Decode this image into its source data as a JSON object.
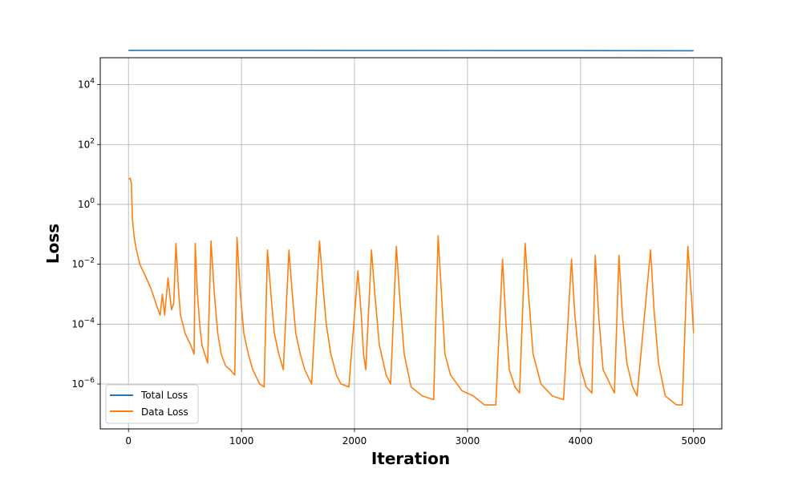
{
  "chart_data": {
    "type": "line",
    "xlabel": "Iteration",
    "ylabel": "Loss",
    "yscale": "log",
    "xlim": [
      -250,
      5250
    ],
    "ylim_log10": [
      -7.5,
      4.9
    ],
    "grid": true,
    "legend_position": "bottom-left",
    "x_ticks": [
      0,
      1000,
      2000,
      3000,
      4000,
      5000
    ],
    "x_tick_labels": [
      "0",
      "1000",
      "2000",
      "3000",
      "4000",
      "5000"
    ],
    "y_ticks_log10": [
      -6,
      -4,
      -2,
      0,
      2,
      4
    ],
    "y_tick_labels": [
      {
        "base": "10",
        "exp": "−6"
      },
      {
        "base": "10",
        "exp": "−4"
      },
      {
        "base": "10",
        "exp": "−2"
      },
      {
        "base": "10",
        "exp": "0"
      },
      {
        "base": "10",
        "exp": "2"
      },
      {
        "base": "10",
        "exp": "4"
      }
    ],
    "series": [
      {
        "name": "Total Loss",
        "color": "#1f77b4",
        "points": [
          [
            0,
            140000
          ],
          [
            1000,
            140000
          ],
          [
            2000,
            139000
          ],
          [
            3000,
            138500
          ],
          [
            4000,
            137500
          ],
          [
            5000,
            136000
          ]
        ]
      },
      {
        "name": "Data Loss",
        "color": "#ff7f0e",
        "points": [
          [
            0,
            7
          ],
          [
            15,
            7.5
          ],
          [
            25,
            5
          ],
          [
            30,
            1.2
          ],
          [
            35,
            0.3
          ],
          [
            40,
            0.2
          ],
          [
            50,
            0.08
          ],
          [
            70,
            0.03
          ],
          [
            100,
            0.01
          ],
          [
            150,
            0.004
          ],
          [
            200,
            0.0015
          ],
          [
            250,
            0.0004
          ],
          [
            280,
            0.0002
          ],
          [
            300,
            0.001
          ],
          [
            320,
            0.0002
          ],
          [
            350,
            0.0035
          ],
          [
            380,
            0.0003
          ],
          [
            400,
            0.0005
          ],
          [
            420,
            0.05
          ],
          [
            440,
            0.002
          ],
          [
            460,
            0.0002
          ],
          [
            480,
            0.0001
          ],
          [
            500,
            5e-05
          ],
          [
            550,
            2e-05
          ],
          [
            580,
            1e-05
          ],
          [
            590,
            0.05
          ],
          [
            610,
            0.001
          ],
          [
            630,
            0.0001
          ],
          [
            650,
            2e-05
          ],
          [
            700,
            5e-06
          ],
          [
            730,
            0.06
          ],
          [
            760,
            0.001
          ],
          [
            790,
            5e-05
          ],
          [
            820,
            1e-05
          ],
          [
            860,
            4e-06
          ],
          [
            900,
            3e-06
          ],
          [
            940,
            2e-06
          ],
          [
            960,
            0.08
          ],
          [
            990,
            0.001
          ],
          [
            1020,
            5e-05
          ],
          [
            1060,
            1e-05
          ],
          [
            1100,
            3e-06
          ],
          [
            1160,
            1e-06
          ],
          [
            1200,
            8e-07
          ],
          [
            1230,
            0.03
          ],
          [
            1260,
            0.001
          ],
          [
            1290,
            5e-05
          ],
          [
            1330,
            1e-05
          ],
          [
            1370,
            3e-06
          ],
          [
            1420,
            0.03
          ],
          [
            1450,
            0.001
          ],
          [
            1480,
            5e-05
          ],
          [
            1520,
            1e-05
          ],
          [
            1560,
            3e-06
          ],
          [
            1620,
            1e-06
          ],
          [
            1690,
            0.06
          ],
          [
            1720,
            0.002
          ],
          [
            1750,
            0.0001
          ],
          [
            1790,
            1e-05
          ],
          [
            1840,
            2e-06
          ],
          [
            1880,
            1e-06
          ],
          [
            1950,
            8e-07
          ],
          [
            2030,
            0.006
          ],
          [
            2060,
            0.0002
          ],
          [
            2080,
            1e-05
          ],
          [
            2100,
            3e-06
          ],
          [
            2150,
            0.03
          ],
          [
            2180,
            0.001
          ],
          [
            2220,
            2e-05
          ],
          [
            2280,
            2e-06
          ],
          [
            2320,
            1e-06
          ],
          [
            2370,
            0.04
          ],
          [
            2400,
            0.0008
          ],
          [
            2440,
            1e-05
          ],
          [
            2500,
            8e-07
          ],
          [
            2600,
            4e-07
          ],
          [
            2700,
            3e-07
          ],
          [
            2740,
            0.09
          ],
          [
            2770,
            0.001
          ],
          [
            2800,
            1e-05
          ],
          [
            2850,
            2e-06
          ],
          [
            2950,
            6e-07
          ],
          [
            3050,
            4e-07
          ],
          [
            3150,
            2e-07
          ],
          [
            3250,
            2e-07
          ],
          [
            3310,
            0.015
          ],
          [
            3340,
            0.0001
          ],
          [
            3370,
            3e-06
          ],
          [
            3420,
            8e-07
          ],
          [
            3460,
            5e-07
          ],
          [
            3510,
            0.05
          ],
          [
            3540,
            0.001
          ],
          [
            3580,
            1e-05
          ],
          [
            3650,
            1e-06
          ],
          [
            3750,
            4e-07
          ],
          [
            3850,
            3e-07
          ],
          [
            3920,
            0.015
          ],
          [
            3950,
            0.0002
          ],
          [
            3990,
            5e-06
          ],
          [
            4050,
            8e-07
          ],
          [
            4100,
            5e-07
          ],
          [
            4130,
            0.02
          ],
          [
            4160,
            0.0002
          ],
          [
            4200,
            3e-06
          ],
          [
            4300,
            5e-07
          ],
          [
            4340,
            0.02
          ],
          [
            4370,
            0.0002
          ],
          [
            4410,
            5e-06
          ],
          [
            4460,
            8e-07
          ],
          [
            4500,
            4e-07
          ],
          [
            4620,
            0.03
          ],
          [
            4650,
            0.0003
          ],
          [
            4690,
            5e-06
          ],
          [
            4750,
            4e-07
          ],
          [
            4850,
            2e-07
          ],
          [
            4900,
            2e-07
          ],
          [
            4950,
            0.04
          ],
          [
            4980,
            0.001
          ],
          [
            5000,
            5e-05
          ]
        ]
      }
    ]
  }
}
